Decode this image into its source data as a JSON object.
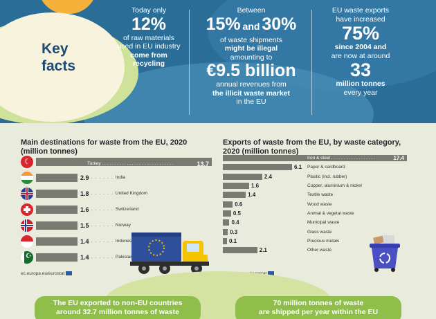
{
  "header": {
    "title_line1": "Key",
    "title_line2": "facts"
  },
  "facts": {
    "f1": {
      "l1": "Today only",
      "big": "12%",
      "l2": "of raw materials",
      "l3": "used in EU industry",
      "l4": "come from",
      "l5": "recycling"
    },
    "f2": {
      "l1": "Between",
      "pct1": "15%",
      "and": "and",
      "pct2": "30%",
      "l2": "of waste shipments",
      "l3": "might be illegal",
      "l4": "amounting to",
      "big": "€9.5 billion",
      "l5": "annual revenues from",
      "l6": "the illicit waste market",
      "l7": "in the EU"
    },
    "f3": {
      "l1": "EU waste exports",
      "l2": "have increased",
      "big": "75%",
      "l3": "since 2004 and",
      "l4": "are now at around",
      "big2": "33",
      "l5": "million tonnes",
      "l6": "every year"
    }
  },
  "left_chart": {
    "title": "Main destinations for waste from the EU, 2020 (million tonnes)",
    "source": "ec.europa.eu/eurostat"
  },
  "right_chart": {
    "title": "Exports of waste from the EU, by waste category, 2020 (million tonnes)",
    "source": "ec.europa.eu/eurostat"
  },
  "chart_data": [
    {
      "type": "bar",
      "title": "Main destinations for waste from the EU, 2020 (million tonnes)",
      "categories": [
        "Turkey",
        "India",
        "United Kingdom",
        "Switzerland",
        "Norway",
        "Indonesia",
        "Pakistan"
      ],
      "values": [
        13.7,
        2.9,
        1.8,
        1.6,
        1.5,
        1.4,
        1.4
      ],
      "labels": [
        "13.7",
        "2.9",
        "1.8",
        "1.6",
        "1.5",
        "1.4",
        "1.4"
      ],
      "xlim": [
        0,
        13.7
      ],
      "orientation": "horizontal",
      "color": "#7a7a72"
    },
    {
      "type": "bar",
      "title": "Exports of waste from the EU, by waste category, 2020 (million tonnes)",
      "categories": [
        "Iron & steel",
        "Paper & cardboard",
        "Plastic (incl. rubber)",
        "Copper, aluminium & nickel",
        "Textile waste",
        "Wood waste",
        "Animal & vegetal waste",
        "Municipal waste",
        "Glass waste",
        "Precious metals",
        "Other waste"
      ],
      "values": [
        17.4,
        6.1,
        2.4,
        1.6,
        1.4,
        0.6,
        0.5,
        0.4,
        0.3,
        0.1,
        2.1
      ],
      "labels": [
        "17.4",
        "6.1",
        "2.4",
        "1.6",
        "1.4",
        "0.6",
        "0.5",
        "0.4",
        "0.3",
        "0.1",
        "2.1"
      ],
      "xlim": [
        0,
        17.4
      ],
      "orientation": "horizontal",
      "color": "#7a7a72"
    }
  ],
  "bottom": {
    "left_l1": "The EU exported to non-EU countries",
    "left_l2": "around 32.7 million tonnes of waste",
    "right_l1": "70 million tonnes of waste",
    "right_l2": "are shipped per year within the EU"
  },
  "colors": {
    "banner": "#2a6e98",
    "bar": "#7a7a72",
    "pill": "#8fbf4a",
    "title": "#1d4b74"
  },
  "icons": [
    "truck-icon",
    "recycle-bin-icon",
    "eu-flag-icon"
  ]
}
